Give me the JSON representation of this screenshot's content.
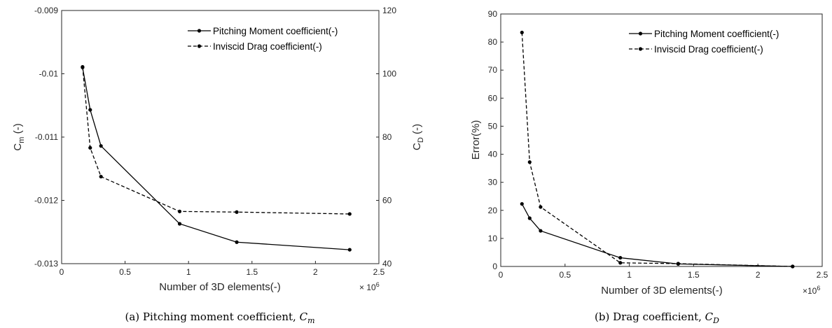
{
  "chart_data": [
    {
      "type": "line",
      "id": "a",
      "caption_prefix": "(a) Pitching moment coefficient, ",
      "caption_sym": "C",
      "caption_sub": "m",
      "xlabel": "Number of 3D elements(-)",
      "x_exponent": "× 10",
      "x_exponent_power": "6",
      "ylabel_left": "C",
      "ylabel_left_sub": "m",
      "ylabel_left_unit": " (-)",
      "ylabel_right": "C",
      "ylabel_right_sub": "D",
      "ylabel_right_unit": " (-)",
      "xlim": [
        0,
        2.5
      ],
      "ylim_left": [
        -0.013,
        -0.009
      ],
      "ylim_right": [
        40,
        120
      ],
      "xticks": [
        "0",
        "0.5",
        "1",
        "1.5",
        "2",
        "2.5"
      ],
      "yticks_left": [
        "-0.013",
        "-0.012",
        "-0.011",
        "-0.01",
        "-0.009"
      ],
      "yticks_right": [
        "40",
        "60",
        "80",
        "100",
        "120"
      ],
      "legend": [
        "Pitching Moment coefficient(-)",
        "Inviscid Drag coefficient(-)"
      ],
      "legend_position": "top-right",
      "series": [
        {
          "name": "Pitching Moment coefficient(-)",
          "axis": "left",
          "style": "solid",
          "x": [
            0.165,
            0.225,
            0.31,
            0.93,
            1.38,
            2.27
          ],
          "y": [
            -0.0099,
            -0.01057,
            -0.01114,
            -0.01237,
            -0.01266,
            -0.01278
          ]
        },
        {
          "name": "Inviscid Drag coefficient(-)",
          "axis": "right",
          "style": "dashed",
          "x": [
            0.165,
            0.225,
            0.31,
            0.93,
            1.38,
            2.27
          ],
          "y": [
            102.2,
            76.6,
            67.5,
            56.5,
            56.3,
            55.7
          ]
        }
      ]
    },
    {
      "type": "line",
      "id": "b",
      "caption_prefix": "(b) Drag coefficient, ",
      "caption_sym": "C",
      "caption_sub": "D",
      "xlabel": "Number of 3D elements(-)",
      "x_exponent": "×10",
      "x_exponent_power": "6",
      "ylabel": "Error(%)",
      "xlim": [
        0,
        2.5
      ],
      "ylim": [
        0,
        90
      ],
      "xticks": [
        "0",
        "0.5",
        "1",
        "1.5",
        "2",
        "2.5"
      ],
      "yticks": [
        "0",
        "10",
        "20",
        "30",
        "40",
        "50",
        "60",
        "70",
        "80",
        "90"
      ],
      "legend": [
        "Pitching Moment coefficient(-)",
        "Inviscid Drag coefficient(-)"
      ],
      "legend_position": "top-right",
      "series": [
        {
          "name": "Pitching Moment coefficient(-)",
          "style": "solid",
          "x": [
            0.165,
            0.225,
            0.31,
            0.93,
            1.38,
            2.27
          ],
          "y": [
            22.3,
            17.2,
            12.7,
            3.1,
            0.9,
            0.0
          ]
        },
        {
          "name": "Inviscid Drag coefficient(-)",
          "style": "dashed",
          "x": [
            0.165,
            0.225,
            0.31,
            0.93,
            1.38,
            2.27
          ],
          "y": [
            83.4,
            37.2,
            21.2,
            1.3,
            1.0,
            0.0
          ]
        }
      ]
    }
  ]
}
